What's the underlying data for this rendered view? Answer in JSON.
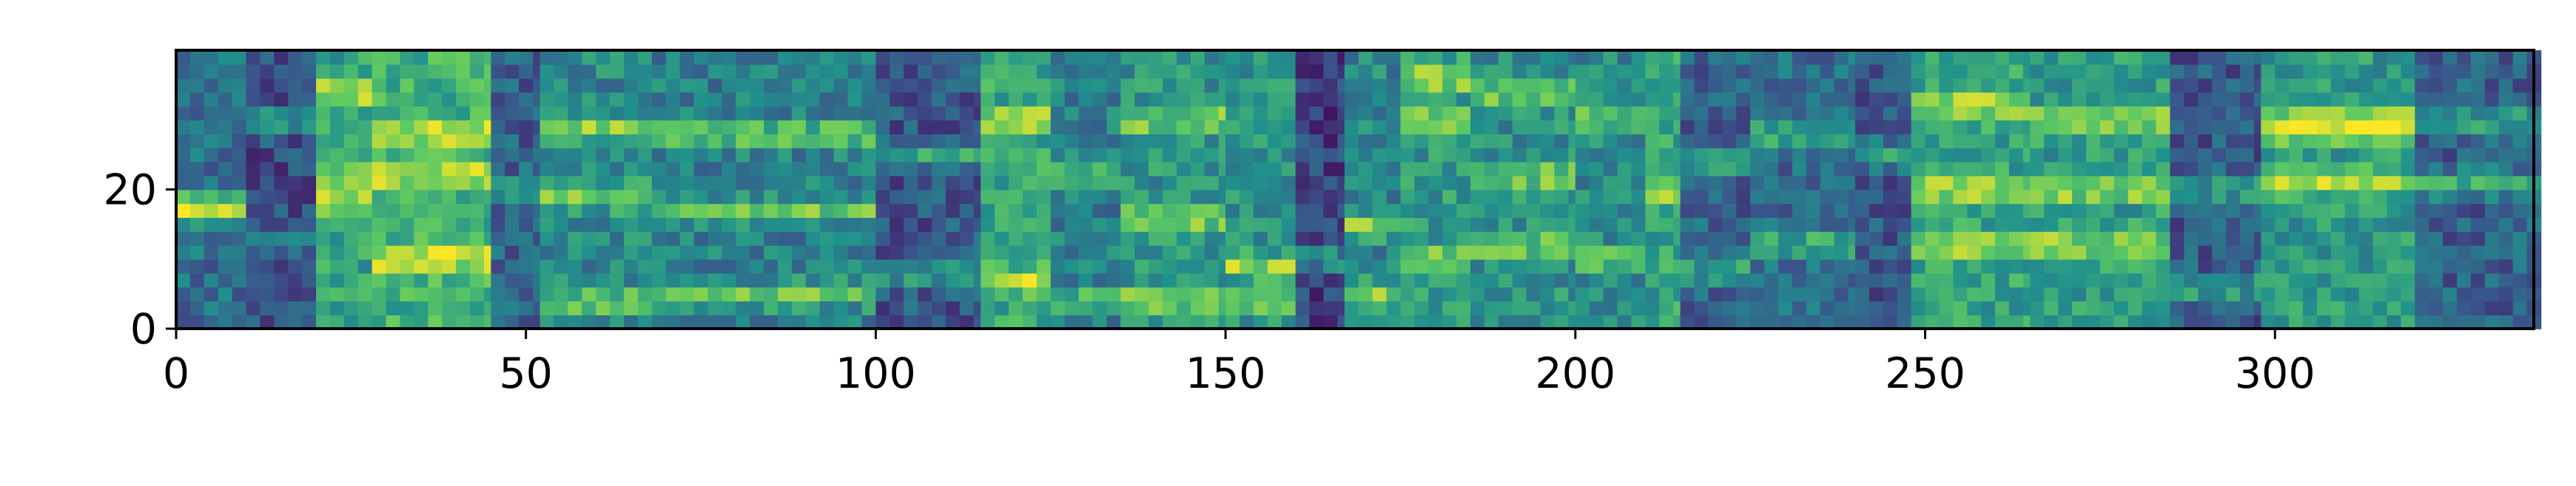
{
  "chart_data": {
    "type": "heatmap",
    "title": "",
    "xlabel": "",
    "ylabel": "",
    "colormap": "viridis",
    "xlim": [
      0,
      337
    ],
    "ylim": [
      0,
      40
    ],
    "x_ticks": [
      {
        "value": 0,
        "label": "0"
      },
      {
        "value": 50,
        "label": "50"
      },
      {
        "value": 100,
        "label": "100"
      },
      {
        "value": 150,
        "label": "150"
      },
      {
        "value": 200,
        "label": "200"
      },
      {
        "value": 250,
        "label": "250"
      },
      {
        "value": 300,
        "label": "300"
      }
    ],
    "y_ticks": [
      {
        "value": 0,
        "label": "0"
      },
      {
        "value": 20,
        "label": "20"
      }
    ],
    "grid": false,
    "legend": "none",
    "segments": [
      {
        "x0": 0,
        "x1": 10,
        "level": 0.42,
        "bands": [
          17,
          18
        ]
      },
      {
        "x0": 10,
        "x1": 20,
        "level": 0.25,
        "bands": [
          13,
          30
        ]
      },
      {
        "x0": 20,
        "x1": 28,
        "level": 0.7,
        "bands": [
          18,
          22,
          34
        ]
      },
      {
        "x0": 28,
        "x1": 45,
        "level": 0.78,
        "bands": [
          10,
          22,
          28
        ]
      },
      {
        "x0": 45,
        "x1": 52,
        "level": 0.35,
        "bands": [
          20
        ]
      },
      {
        "x0": 52,
        "x1": 68,
        "level": 0.55,
        "bands": [
          4,
          19,
          29
        ]
      },
      {
        "x0": 68,
        "x1": 100,
        "level": 0.5,
        "bands": [
          5,
          17,
          28
        ]
      },
      {
        "x0": 100,
        "x1": 115,
        "level": 0.3,
        "bands": [
          8,
          25
        ]
      },
      {
        "x0": 115,
        "x1": 125,
        "level": 0.72,
        "bands": [
          7,
          30
        ]
      },
      {
        "x0": 125,
        "x1": 135,
        "level": 0.5,
        "bands": [
          4,
          22
        ]
      },
      {
        "x0": 135,
        "x1": 150,
        "level": 0.62,
        "bands": [
          4,
          16,
          30
        ]
      },
      {
        "x0": 150,
        "x1": 160,
        "level": 0.6,
        "bands": [
          4,
          9
        ]
      },
      {
        "x0": 160,
        "x1": 167,
        "level": 0.2,
        "bands": [
          10
        ]
      },
      {
        "x0": 167,
        "x1": 175,
        "level": 0.55,
        "bands": [
          15,
          5
        ]
      },
      {
        "x0": 175,
        "x1": 185,
        "level": 0.65,
        "bands": [
          10,
          30,
          36
        ]
      },
      {
        "x0": 185,
        "x1": 200,
        "level": 0.6,
        "bands": [
          12,
          22,
          34
        ]
      },
      {
        "x0": 200,
        "x1": 210,
        "level": 0.55,
        "bands": [
          10,
          30
        ]
      },
      {
        "x0": 210,
        "x1": 215,
        "level": 0.7,
        "bands": [
          20
        ]
      },
      {
        "x0": 215,
        "x1": 225,
        "level": 0.35,
        "bands": [
          8,
          24
        ]
      },
      {
        "x0": 225,
        "x1": 240,
        "level": 0.4,
        "bands": [
          12,
          28
        ]
      },
      {
        "x0": 240,
        "x1": 248,
        "level": 0.3,
        "bands": [
          25
        ]
      },
      {
        "x0": 248,
        "x1": 265,
        "level": 0.7,
        "bands": [
          12,
          20,
          32
        ]
      },
      {
        "x0": 265,
        "x1": 285,
        "level": 0.66,
        "bands": [
          12,
          20,
          30
        ]
      },
      {
        "x0": 285,
        "x1": 298,
        "level": 0.3,
        "bands": [
          6,
          20
        ]
      },
      {
        "x0": 298,
        "x1": 320,
        "level": 0.65,
        "bands": [
          21,
          28,
          30
        ]
      },
      {
        "x0": 320,
        "x1": 337,
        "level": 0.35,
        "bands": [
          21,
          30
        ]
      }
    ]
  }
}
